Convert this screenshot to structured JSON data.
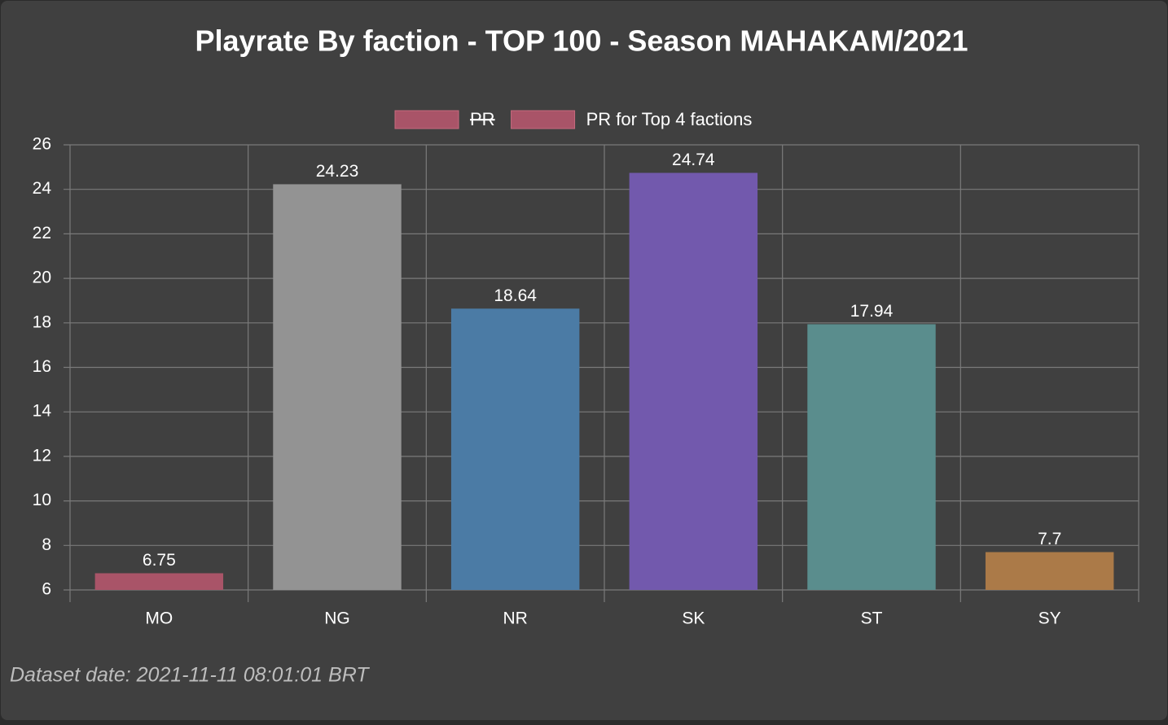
{
  "chart_data": {
    "type": "bar",
    "title": "Playrate By faction - TOP 100 - Season MAHAKAM/2021",
    "legend": [
      {
        "name": "PR",
        "color": "#a95468",
        "hidden": true
      },
      {
        "name": "PR for Top 4 factions",
        "color": "#a95468",
        "hidden": false
      }
    ],
    "categories": [
      "MO",
      "NG",
      "NR",
      "SK",
      "ST",
      "SY"
    ],
    "values": [
      6.75,
      24.23,
      18.64,
      24.74,
      17.94,
      7.7
    ],
    "colors": [
      "#a95468",
      "#939393",
      "#4b7ba5",
      "#7259ad",
      "#5a8d8d",
      "#ab7a48"
    ],
    "ylim": [
      6,
      26
    ],
    "yticks": [
      6,
      8,
      10,
      12,
      14,
      16,
      18,
      20,
      22,
      24,
      26
    ],
    "grid": true,
    "footnote": "Dataset date: 2021-11-11 08:01:01 BRT"
  }
}
